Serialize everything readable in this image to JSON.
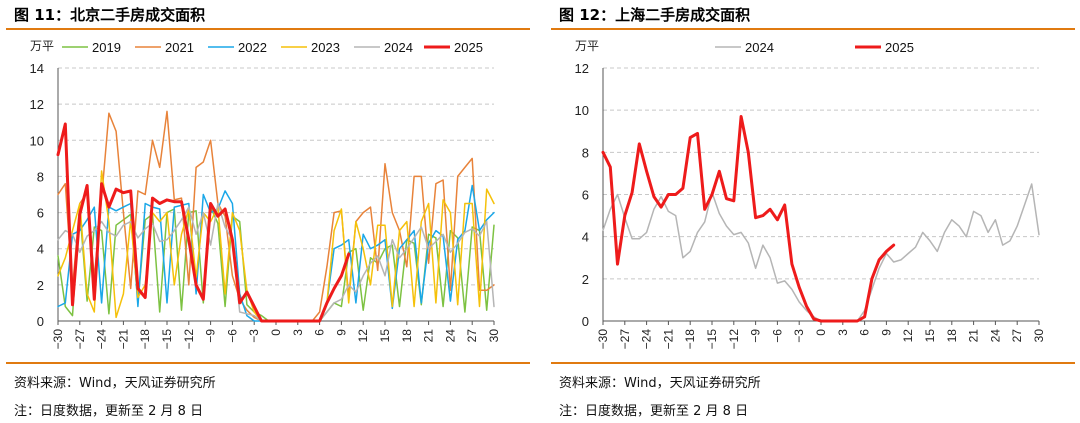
{
  "figures": [
    {
      "title": "图 11：北京二手房成交面积",
      "source": "资料来源：Wind，天风证券研究所",
      "footnote": "注：日度数据，更新至 2 月 8 日"
    },
    {
      "title": "图 12：上海二手房成交面积",
      "source": "资料来源：Wind，天风证券研究所",
      "footnote": "注：日度数据，更新至 2 月 8 日"
    }
  ],
  "chart_data": [
    {
      "type": "line",
      "title": "北京二手房成交面积",
      "ylabel": "万平",
      "xlabel": "",
      "ylim": [
        0,
        14
      ],
      "yticks": [
        0,
        2,
        4,
        6,
        8,
        10,
        12,
        14
      ],
      "xlim": [
        -30,
        30
      ],
      "xticks": [
        "−30",
        "−27",
        "−24",
        "−21",
        "−18",
        "−15",
        "−12",
        "−9",
        "−6",
        "−3",
        "0",
        "3",
        "6",
        "9",
        "12",
        "15",
        "18",
        "21",
        "24",
        "27",
        "30"
      ],
      "legend_position": "top",
      "series": [
        {
          "name": "2019",
          "color": "#7DC242",
          "width": 1.5,
          "x": [
            -30,
            -29,
            -28,
            -27,
            -26,
            -25,
            -24,
            -23,
            -22,
            -21,
            -20,
            -19,
            -18,
            -17,
            -16,
            -15,
            -14,
            -13,
            -12,
            -11,
            -10,
            -9,
            -8,
            -7,
            -6,
            -5,
            -4,
            -3,
            -2,
            -1,
            0,
            1,
            2,
            3,
            4,
            5,
            6,
            7,
            8,
            9,
            10,
            11,
            12,
            13,
            14,
            15,
            16,
            17,
            18,
            19,
            20,
            21,
            22,
            23,
            24,
            25,
            26,
            27,
            28,
            29,
            30
          ],
          "y": [
            3.6,
            0.8,
            0.3,
            6.1,
            1.1,
            5.2,
            5.0,
            0.4,
            5.3,
            5.6,
            5.9,
            1.0,
            5.6,
            5.9,
            0.5,
            6.0,
            6.2,
            0.6,
            6.0,
            6.1,
            1.0,
            6.3,
            5.4,
            0.8,
            5.8,
            5.5,
            0.9,
            0.5,
            0.3,
            0.0,
            0.0,
            0.0,
            0.0,
            0.0,
            0.0,
            0.0,
            0.0,
            0.5,
            1.0,
            0.8,
            3.8,
            4.0,
            0.6,
            3.5,
            3.2,
            4.0,
            4.2,
            0.8,
            4.5,
            4.3,
            0.9,
            4.8,
            4.6,
            0.8,
            5.0,
            4.6,
            0.5,
            5.2,
            5.0,
            0.6,
            5.3
          ]
        },
        {
          "name": "2021",
          "color": "#E8833A",
          "width": 1.5,
          "x": [
            -30,
            -29,
            -28,
            -27,
            -26,
            -25,
            -24,
            -23,
            -22,
            -21,
            -20,
            -19,
            -18,
            -17,
            -16,
            -15,
            -14,
            -13,
            -12,
            -11,
            -10,
            -9,
            -8,
            -7,
            -6,
            -5,
            -4,
            -3,
            -2,
            -1,
            0,
            1,
            2,
            3,
            4,
            5,
            6,
            7,
            8,
            9,
            10,
            11,
            12,
            13,
            14,
            15,
            16,
            17,
            18,
            19,
            20,
            21,
            22,
            23,
            24,
            25,
            26,
            27,
            28,
            29,
            30
          ],
          "y": [
            7.0,
            7.6,
            1.8,
            6.5,
            7.1,
            2.4,
            6.8,
            11.5,
            10.5,
            6.0,
            1.8,
            7.2,
            7.0,
            10.0,
            8.5,
            11.6,
            6.7,
            6.8,
            2.0,
            8.5,
            8.8,
            10.0,
            6.5,
            5.8,
            2.5,
            1.2,
            0.6,
            0.2,
            0.0,
            0.0,
            0.0,
            0.0,
            0.0,
            0.0,
            0.0,
            0.0,
            0.5,
            3.0,
            6.0,
            6.1,
            1.3,
            5.5,
            6.0,
            6.3,
            2.8,
            8.7,
            6.0,
            5.0,
            3.0,
            8.0,
            8.0,
            3.2,
            7.6,
            7.8,
            1.7,
            8.0,
            8.5,
            9.0,
            1.7,
            1.7,
            2.0
          ]
        },
        {
          "name": "2022",
          "color": "#1AA7E8",
          "width": 1.5,
          "x": [
            -30,
            -29,
            -28,
            -27,
            -26,
            -25,
            -24,
            -23,
            -22,
            -21,
            -20,
            -19,
            -18,
            -17,
            -16,
            -15,
            -14,
            -13,
            -12,
            -11,
            -10,
            -9,
            -8,
            -7,
            -6,
            -5,
            -4,
            -3,
            -2,
            -1,
            0,
            1,
            2,
            3,
            4,
            5,
            6,
            7,
            8,
            9,
            10,
            11,
            12,
            13,
            14,
            15,
            16,
            17,
            18,
            19,
            20,
            21,
            22,
            23,
            24,
            25,
            26,
            27,
            28,
            29,
            30
          ],
          "y": [
            0.8,
            1.0,
            4.8,
            5.0,
            5.6,
            6.3,
            1.0,
            6.3,
            6.1,
            6.3,
            6.5,
            0.8,
            6.5,
            6.3,
            6.2,
            1.0,
            6.3,
            6.4,
            6.5,
            1.5,
            7.0,
            6.0,
            6.2,
            7.2,
            6.5,
            1.5,
            0.3,
            0.0,
            0.0,
            0.0,
            0.0,
            0.0,
            0.0,
            0.0,
            0.0,
            0.0,
            0.0,
            1.0,
            4.0,
            4.2,
            4.5,
            1.0,
            4.8,
            4.0,
            4.2,
            4.5,
            0.7,
            4.0,
            4.5,
            5.0,
            1.0,
            4.3,
            5.0,
            4.7,
            1.1,
            4.5,
            5.0,
            7.5,
            5.0,
            5.6,
            6.0
          ]
        },
        {
          "name": "2023",
          "color": "#F5C10A",
          "width": 1.5,
          "x": [
            -30,
            -29,
            -28,
            -27,
            -26,
            -25,
            -24,
            -23,
            -22,
            -21,
            -20,
            -19,
            -18,
            -17,
            -16,
            -15,
            -14,
            -13,
            -12,
            -11,
            -10,
            -9,
            -8,
            -7,
            -6,
            -5,
            -4,
            -3,
            -2,
            -1,
            0,
            1,
            2,
            3,
            4,
            5,
            6,
            7,
            8,
            9,
            10,
            11,
            12,
            13,
            14,
            15,
            16,
            17,
            18,
            19,
            20,
            21,
            22,
            23,
            24,
            25,
            26,
            27,
            28,
            29,
            30
          ],
          "y": [
            2.5,
            3.5,
            5.0,
            6.5,
            1.5,
            0.5,
            8.3,
            5.5,
            0.2,
            1.5,
            5.6,
            1.3,
            2.0,
            6.0,
            5.5,
            6.0,
            2.0,
            4.8,
            6.2,
            2.4,
            6.0,
            5.5,
            6.3,
            1.5,
            6.0,
            5.0,
            1.7,
            0.5,
            0.0,
            0.0,
            0.0,
            0.0,
            0.0,
            0.0,
            0.0,
            0.0,
            0.0,
            1.0,
            5.0,
            6.2,
            1.0,
            5.5,
            4.0,
            2.0,
            5.3,
            5.3,
            0.8,
            5.0,
            5.5,
            0.8,
            5.5,
            6.5,
            1.0,
            6.7,
            6.0,
            0.9,
            6.5,
            6.5,
            0.8,
            7.3,
            6.5
          ]
        },
        {
          "name": "2024",
          "color": "#B5B5B5",
          "width": 1.5,
          "x": [
            -30,
            -29,
            -28,
            -27,
            -26,
            -25,
            -24,
            -23,
            -22,
            -21,
            -20,
            -19,
            -18,
            -17,
            -16,
            -15,
            -14,
            -13,
            -12,
            -11,
            -10,
            -9,
            -8,
            -7,
            -6,
            -5,
            -4,
            -3,
            -2,
            -1,
            0,
            1,
            2,
            3,
            4,
            5,
            6,
            7,
            8,
            9,
            10,
            11,
            12,
            13,
            14,
            15,
            16,
            17,
            18,
            19,
            20,
            21,
            22,
            23,
            24,
            25,
            26,
            27,
            28,
            29,
            30
          ],
          "y": [
            4.5,
            5.0,
            4.8,
            3.8,
            4.7,
            5.0,
            5.5,
            4.9,
            4.7,
            5.3,
            5.5,
            4.6,
            5.1,
            5.4,
            4.4,
            4.5,
            5.0,
            5.6,
            6.3,
            4.8,
            6.0,
            4.2,
            6.5,
            5.2,
            4.5,
            0.5,
            0.4,
            0.3,
            0.0,
            0.0,
            0.0,
            0.0,
            0.0,
            0.0,
            0.0,
            0.0,
            0.0,
            0.5,
            1.0,
            1.2,
            2.0,
            1.6,
            2.5,
            3.2,
            3.6,
            2.5,
            4.5,
            3.5,
            4.0,
            4.6,
            5.2,
            4.0,
            4.4,
            4.8,
            3.8,
            4.3,
            4.9,
            5.1,
            4.7,
            5.5,
            0.8
          ]
        },
        {
          "name": "2025",
          "color": "#EE1B1B",
          "width": 3,
          "x": [
            -30,
            -29,
            -28,
            -27,
            -26,
            -25,
            -24,
            -23,
            -22,
            -21,
            -20,
            -19,
            -18,
            -17,
            -16,
            -15,
            -14,
            -13,
            -12,
            -11,
            -10,
            -9,
            -8,
            -7,
            -6,
            -5,
            -4,
            -3,
            -2,
            -1,
            0,
            1,
            2,
            3,
            4,
            5,
            6,
            7,
            8,
            9,
            10
          ],
          "y": [
            9.2,
            10.9,
            0.9,
            5.9,
            7.5,
            1.2,
            7.6,
            6.3,
            7.3,
            7.1,
            7.2,
            1.8,
            1.3,
            6.8,
            6.5,
            6.7,
            6.6,
            6.6,
            4.5,
            2.0,
            1.2,
            6.5,
            5.8,
            6.2,
            4.5,
            1.0,
            1.6,
            0.8,
            0.0,
            0.0,
            0.0,
            0.0,
            0.0,
            0.0,
            0.0,
            0.0,
            0.0,
            1.0,
            1.8,
            2.5,
            3.7
          ]
        }
      ]
    },
    {
      "type": "line",
      "title": "上海二手房成交面积",
      "ylabel": "万平",
      "xlabel": "",
      "ylim": [
        0,
        12
      ],
      "yticks": [
        0,
        2,
        4,
        6,
        8,
        10,
        12
      ],
      "xlim": [
        -30,
        30
      ],
      "xticks": [
        "−30",
        "−27",
        "−24",
        "−21",
        "−18",
        "−15",
        "−12",
        "−9",
        "−6",
        "−3",
        "0",
        "3",
        "6",
        "9",
        "12",
        "15",
        "18",
        "21",
        "24",
        "27",
        "30"
      ],
      "legend_position": "top",
      "series": [
        {
          "name": "2024",
          "color": "#B5B5B5",
          "width": 1.5,
          "x": [
            -30,
            -29,
            -28,
            -27,
            -26,
            -25,
            -24,
            -23,
            -22,
            -21,
            -20,
            -19,
            -18,
            -17,
            -16,
            -15,
            -14,
            -13,
            -12,
            -11,
            -10,
            -9,
            -8,
            -7,
            -6,
            -5,
            -4,
            -3,
            -2,
            -1,
            0,
            1,
            2,
            3,
            4,
            5,
            6,
            7,
            8,
            9,
            10,
            11,
            12,
            13,
            14,
            15,
            16,
            17,
            18,
            19,
            20,
            21,
            22,
            23,
            24,
            25,
            26,
            27,
            28,
            29,
            30
          ],
          "y": [
            4.3,
            5.3,
            6.0,
            4.9,
            3.9,
            3.9,
            4.2,
            5.3,
            5.9,
            5.2,
            5.0,
            3.0,
            3.3,
            4.2,
            4.7,
            6.1,
            5.1,
            4.5,
            4.1,
            4.2,
            3.7,
            2.5,
            3.6,
            3.0,
            1.8,
            1.9,
            1.5,
            0.9,
            0.5,
            0.2,
            0.0,
            0.0,
            0.0,
            0.0,
            0.0,
            0.0,
            0.5,
            1.5,
            2.5,
            3.2,
            2.8,
            2.9,
            3.2,
            3.5,
            4.2,
            3.8,
            3.3,
            4.2,
            4.8,
            4.5,
            4.0,
            5.2,
            5.0,
            4.2,
            4.8,
            3.6,
            3.8,
            4.5,
            5.5,
            6.5,
            4.1
          ]
        },
        {
          "name": "2025",
          "color": "#EE1B1B",
          "width": 3,
          "x": [
            -30,
            -29,
            -28,
            -27,
            -26,
            -25,
            -24,
            -23,
            -22,
            -21,
            -20,
            -19,
            -18,
            -17,
            -16,
            -15,
            -14,
            -13,
            -12,
            -11,
            -10,
            -9,
            -8,
            -7,
            -6,
            -5,
            -4,
            -3,
            -2,
            -1,
            0,
            1,
            2,
            3,
            4,
            5,
            6,
            7,
            8,
            9,
            10
          ],
          "y": [
            8.0,
            7.3,
            2.7,
            5.0,
            6.1,
            8.4,
            7.1,
            5.9,
            5.4,
            6.0,
            6.0,
            6.3,
            8.7,
            8.9,
            5.3,
            6.0,
            7.1,
            5.8,
            5.7,
            9.7,
            8.0,
            4.9,
            5.0,
            5.3,
            4.8,
            5.5,
            2.7,
            1.6,
            0.7,
            0.1,
            0.0,
            0.0,
            0.0,
            0.0,
            0.0,
            0.0,
            0.2,
            2.0,
            2.9,
            3.3,
            3.6
          ]
        }
      ]
    }
  ]
}
